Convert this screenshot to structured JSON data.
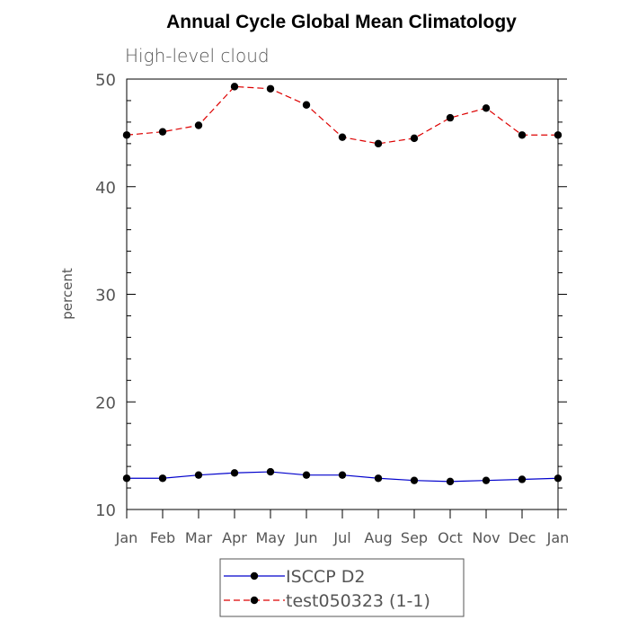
{
  "chart_data": {
    "type": "line",
    "title": "Annual Cycle Global Mean Climatology",
    "subtitle": "High-level cloud",
    "xlabel": "",
    "ylabel": "percent",
    "ylim": [
      10,
      50
    ],
    "yticks": [
      "10",
      "20",
      "30",
      "40",
      "50"
    ],
    "categories": [
      "Jan",
      "Feb",
      "Mar",
      "Apr",
      "May",
      "Jun",
      "Jul",
      "Aug",
      "Sep",
      "Oct",
      "Nov",
      "Dec",
      "Jan"
    ],
    "legend_position": "bottom",
    "series": [
      {
        "name": "ISCCP D2",
        "color": "#0000cc",
        "style": "solid",
        "values": [
          12.9,
          12.9,
          13.2,
          13.4,
          13.5,
          13.2,
          13.2,
          12.9,
          12.7,
          12.6,
          12.7,
          12.8,
          12.9
        ]
      },
      {
        "name": "test050323 (1-1)",
        "color": "#dd0000",
        "style": "dashed",
        "values": [
          44.8,
          45.1,
          45.7,
          49.3,
          49.1,
          47.6,
          44.6,
          44.0,
          44.5,
          46.4,
          47.3,
          44.8,
          44.8
        ]
      }
    ]
  }
}
